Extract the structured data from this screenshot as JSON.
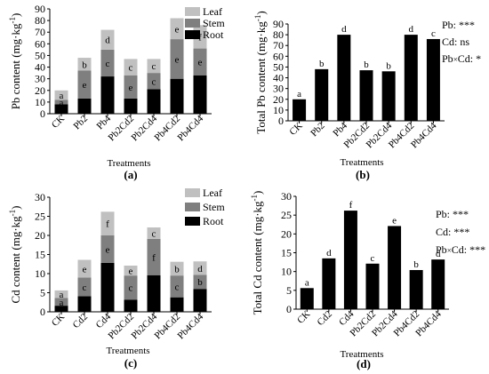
{
  "colors": {
    "root": "#000000",
    "stem": "#7f7f7f",
    "leaf": "#c0c0c0",
    "total": "#000000",
    "axis": "#000000"
  },
  "chart_data": [
    {
      "id": "a",
      "type": "bar",
      "stacked": true,
      "panel_label": "(a)",
      "xlabel": "Treatments",
      "ylabel": "Pb content (mg·kg",
      "ylabel_sup": "-1",
      "ylabel_close": ")",
      "ylim": [
        0,
        90
      ],
      "yticks": [
        "0",
        "10",
        "20",
        "30",
        "40",
        "50",
        "60",
        "70",
        "80",
        "90"
      ],
      "legend_position": "top-right",
      "categories": [
        "CK",
        "Pb2",
        "Pb4",
        "Pb2Cd2",
        "Pb2Cd4",
        "Pb4Cd2",
        "Pb4Cd4"
      ],
      "series": [
        {
          "name": "Root",
          "color_key": "root",
          "values": [
            8,
            13,
            32,
            13,
            21,
            30,
            33
          ],
          "labels": [
            "a",
            "ab",
            "d",
            "ab",
            "b",
            "c",
            "e"
          ]
        },
        {
          "name": "Stem",
          "color_key": "stem",
          "values": [
            4,
            24,
            23,
            20,
            14,
            34,
            23
          ],
          "labels": [
            "a",
            "e",
            "c",
            "e",
            "c",
            "e",
            "e"
          ]
        },
        {
          "name": "Leaf",
          "color_key": "leaf",
          "values": [
            8,
            11,
            17,
            14,
            12,
            18,
            20
          ],
          "labels": [
            "a",
            "b",
            "d",
            "c",
            "c",
            "e",
            "f"
          ]
        }
      ]
    },
    {
      "id": "b",
      "type": "bar",
      "panel_label": "(b)",
      "xlabel": "Treatments",
      "ylabel": "Total Pb content (mg·kg",
      "ylabel_sup": "-1",
      "ylabel_close": ")",
      "ylim": [
        0,
        90
      ],
      "yticks": [
        "0",
        "10",
        "20",
        "30",
        "40",
        "50",
        "60",
        "70",
        "80",
        "90"
      ],
      "categories": [
        "CK",
        "Pb2",
        "Pb4",
        "Pb2Cd2",
        "Pb2Cd4",
        "Pb4Cd2",
        "Pb4Cd4"
      ],
      "series": [
        {
          "color_key": "total",
          "values": [
            20,
            48,
            80,
            47,
            46,
            80,
            76
          ],
          "labels": [
            "a",
            "b",
            "d",
            "b",
            "b",
            "d",
            "c"
          ]
        }
      ],
      "stats": [
        {
          "label": "Pb: ",
          "value": "***"
        },
        {
          "label": "Cd: ",
          "value": "ns"
        },
        {
          "label": "Pb",
          "times": "×",
          "label2": "Cd: ",
          "value": "*"
        }
      ]
    },
    {
      "id": "c",
      "type": "bar",
      "stacked": true,
      "panel_label": "(c)",
      "xlabel": "Treatments",
      "ylabel": "Cd content (mg·kg",
      "ylabel_sup": "-1",
      "ylabel_close": ")",
      "ylim": [
        0,
        30
      ],
      "yticks": [
        "0",
        "5",
        "10",
        "15",
        "20",
        "25",
        "30"
      ],
      "legend_position": "top-right",
      "categories": [
        "CK",
        "Cd2",
        "Cd4",
        "Pb2Cd2",
        "Pb2Cd4",
        "Pb4Cd2",
        "Pb4Cd4"
      ],
      "series": [
        {
          "name": "Root",
          "color_key": "root",
          "values": [
            1.6,
            4.1,
            12.8,
            3.2,
            9.6,
            3.8,
            6.0
          ],
          "labels": [
            "a",
            "b",
            "f",
            "b",
            "e",
            "b",
            "d"
          ]
        },
        {
          "name": "Stem",
          "color_key": "stem",
          "values": [
            2.0,
            4.9,
            7.2,
            6.3,
            9.5,
            5.7,
            3.7
          ],
          "labels": [
            "a",
            "c",
            "e",
            "c",
            "f",
            "c",
            "b"
          ]
        },
        {
          "name": "Leaf",
          "color_key": "leaf",
          "values": [
            2.0,
            4.6,
            6.2,
            2.6,
            3.0,
            3.6,
            3.5
          ],
          "labels": [
            "a",
            "e",
            "f",
            "e",
            "c",
            "b",
            "d"
          ]
        }
      ]
    },
    {
      "id": "d",
      "type": "bar",
      "panel_label": "(d)",
      "xlabel": "Treatments",
      "ylabel": "Total Cd content (mg·kg",
      "ylabel_sup": "-1",
      "ylabel_close": ")",
      "ylim": [
        0,
        30
      ],
      "yticks": [
        "0",
        "5",
        "10",
        "15",
        "20",
        "25",
        "30"
      ],
      "categories": [
        "CK",
        "Cd2",
        "Cd4",
        "Pb2Cd2",
        "Pb2Cd4",
        "Pb4Cd2",
        "Pb4Cd4"
      ],
      "series": [
        {
          "color_key": "total",
          "values": [
            5.6,
            13.5,
            26.2,
            12.1,
            22.1,
            10.4,
            13.2
          ],
          "labels": [
            "a",
            "d",
            "f",
            "c",
            "e",
            "b",
            "d"
          ]
        }
      ],
      "stats": [
        {
          "label": "Pb: ",
          "value": "***"
        },
        {
          "label": "Cd: ",
          "value": "***"
        },
        {
          "label": "Pb",
          "times": "×",
          "label2": "Cd: ",
          "value": "***"
        }
      ]
    }
  ]
}
